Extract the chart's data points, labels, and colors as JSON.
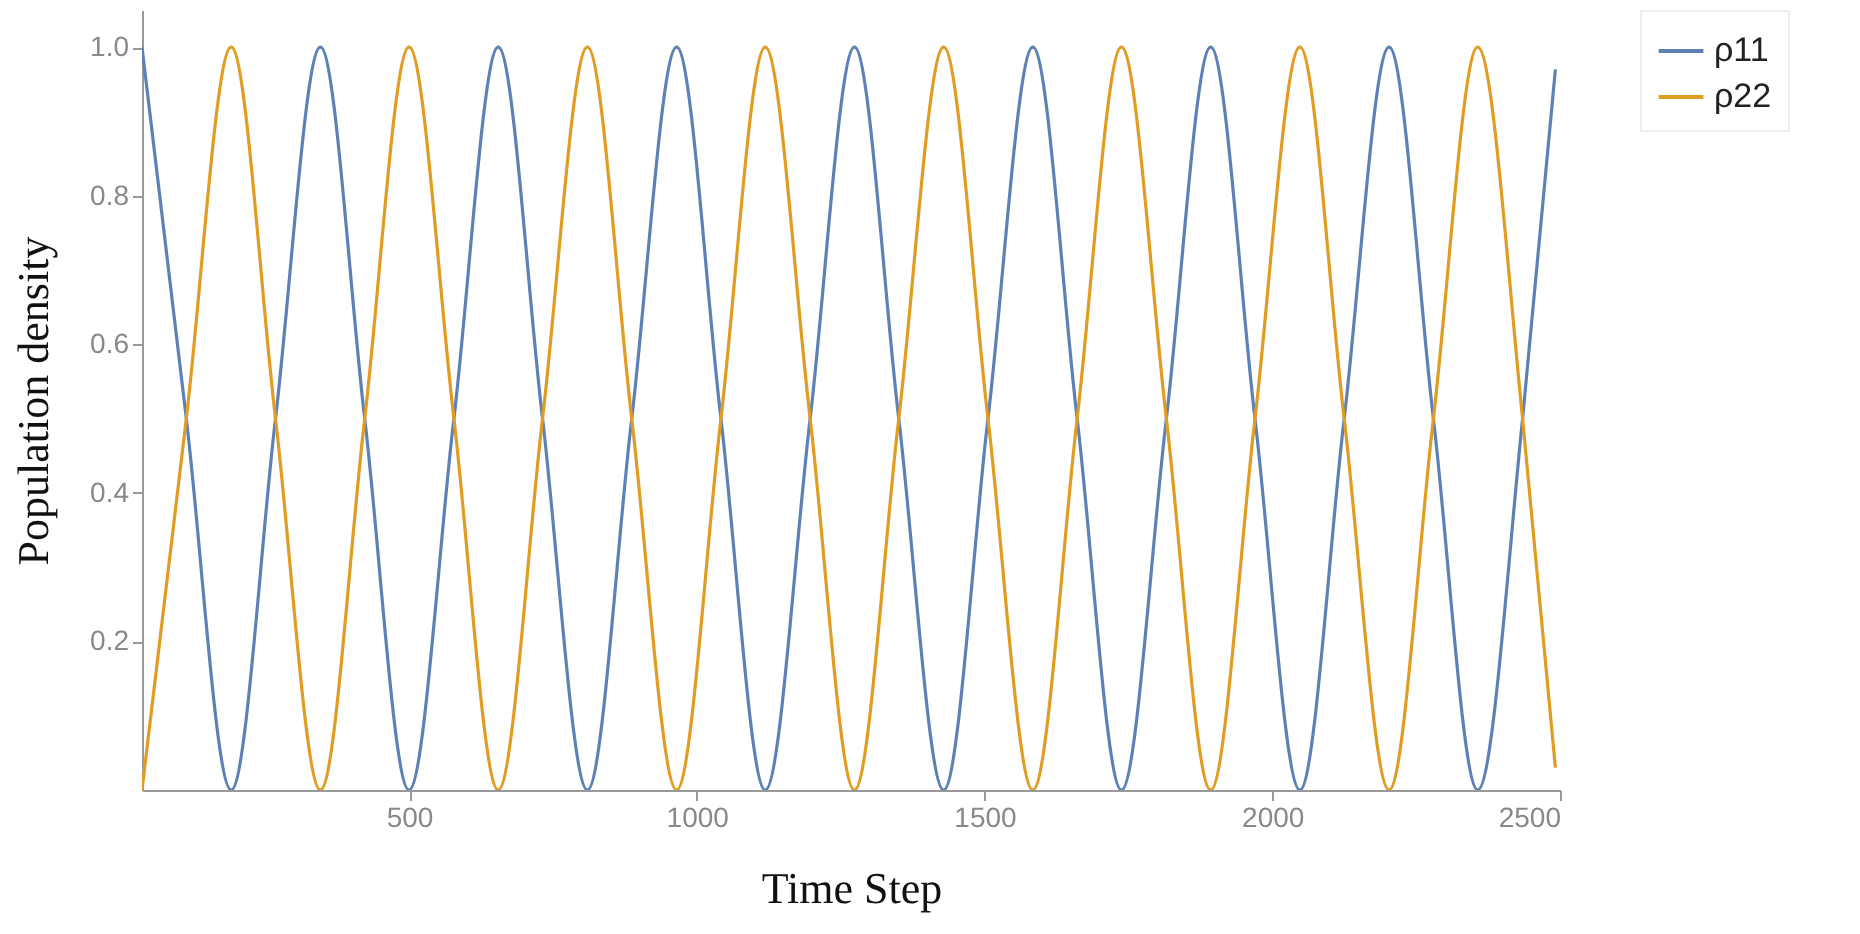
{
  "chart_data": {
    "type": "line",
    "xlabel": "Time Step",
    "ylabel": "Population density",
    "x": [
      36,
      113,
      191,
      268,
      346,
      423,
      500,
      578,
      655,
      732,
      810,
      887,
      965,
      1042,
      1119,
      1197,
      1274,
      1351,
      1429,
      1506,
      1584,
      1661,
      1738,
      1816,
      1893,
      1970,
      2048,
      2125,
      2203,
      2280,
      2357,
      2435,
      2492
    ],
    "series": [
      {
        "name": "ρ11",
        "color": "#5e81b5",
        "values": [
          1,
          0.5,
          0,
          0.5,
          1,
          0.5,
          0,
          0.5,
          1,
          0.5,
          0,
          0.5,
          1,
          0.5,
          0,
          0.5,
          1,
          0.5,
          0,
          0.5,
          1,
          0.5,
          0,
          0.5,
          1,
          0.5,
          0,
          0.5,
          1,
          0.5,
          0,
          0.5,
          0.97
        ]
      },
      {
        "name": "ρ22",
        "color": "#e19c24",
        "values": [
          0,
          0.5,
          1,
          0.5,
          0,
          0.5,
          1,
          0.5,
          0,
          0.5,
          1,
          0.5,
          0,
          0.5,
          1,
          0.5,
          0,
          0.5,
          1,
          0.5,
          0,
          0.5,
          1,
          0.5,
          0,
          0.5,
          1,
          0.5,
          0,
          0.5,
          1,
          0.5,
          0.03
        ]
      }
    ],
    "xlim": [
      36,
      2500
    ],
    "xticks": [
      500,
      1000,
      1500,
      2000,
      2500
    ],
    "ylim": [
      0,
      1.05
    ],
    "yticks": [
      0.2,
      0.4,
      0.6,
      {
        "value": 0.8,
        "label": "0.8"
      },
      {
        "value": 1,
        "label": "1.0"
      }
    ],
    "grid": false,
    "legend": "right",
    "marker": "none",
    "line_style": "solid"
  }
}
